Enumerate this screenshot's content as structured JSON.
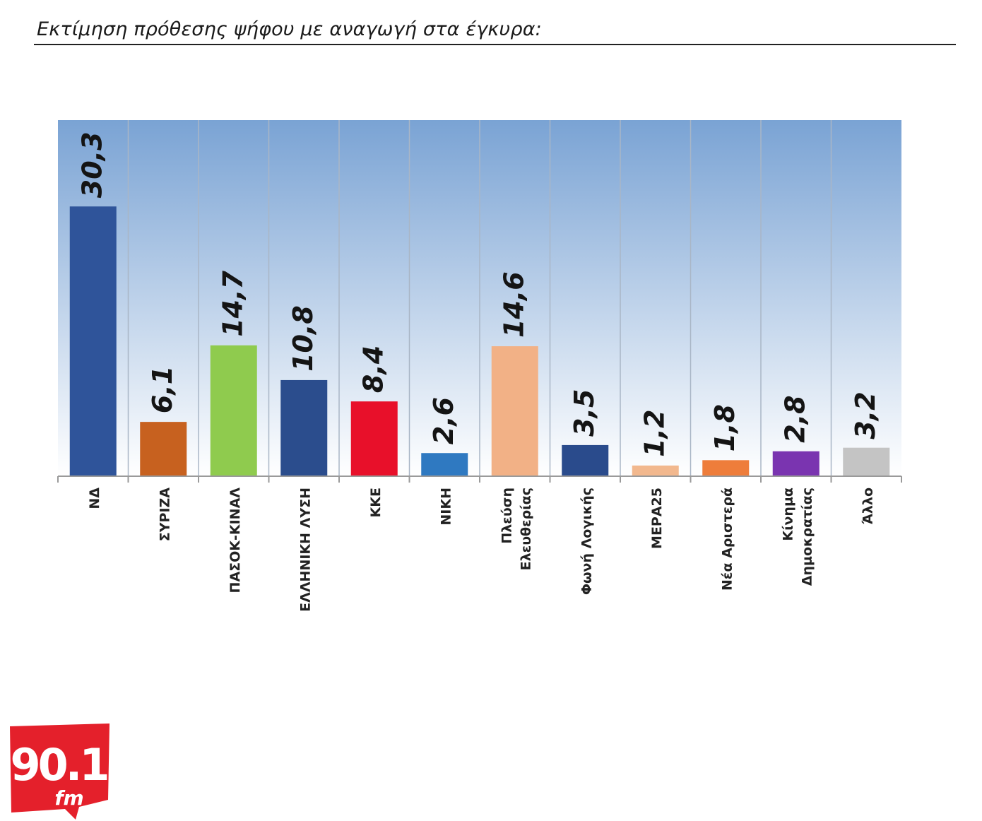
{
  "header": {
    "title": "Εκτίμηση πρόθεσης ψήφου με αναγωγή στα έγκυρα:"
  },
  "chart_data": {
    "type": "bar",
    "categories": [
      [
        "ΝΔ"
      ],
      [
        "ΣΥΡΙΖΑ"
      ],
      [
        "ΠΑΣΟΚ-ΚΙΝΑΛ"
      ],
      [
        "ΕΛΛΗΝΙΚΗ ΛΥΣΗ"
      ],
      [
        "ΚΚΕ"
      ],
      [
        "ΝΙΚΗ"
      ],
      [
        "Πλεύση",
        "Ελευθερίας"
      ],
      [
        "Φωνή Λογικής"
      ],
      [
        "ΜΕΡΑ25"
      ],
      [
        "Νέα Αριστερά"
      ],
      [
        "Κίνημα",
        "Δημοκρατίας"
      ],
      [
        "Άλλο"
      ]
    ],
    "values": [
      30.3,
      6.1,
      14.7,
      10.8,
      8.4,
      2.6,
      14.6,
      3.5,
      1.2,
      1.8,
      2.8,
      3.2
    ],
    "value_labels": [
      "30,3",
      "6,1",
      "14,7",
      "10,8",
      "8,4",
      "2,6",
      "14,6",
      "3,5",
      "1,2",
      "1,8",
      "2,8",
      "3,2"
    ],
    "colors": [
      "#2f549a",
      "#c7611f",
      "#8fcb4e",
      "#2b4d8d",
      "#e8102a",
      "#2f79c1",
      "#f2b186",
      "#2a4b8c",
      "#f2b88e",
      "#ee7d3b",
      "#7a34b0",
      "#c4c4c4"
    ],
    "ylim": [
      0,
      40
    ],
    "background_gradient": [
      "#7aa3d4",
      "#ffffff"
    ],
    "grid": false,
    "legend": "none"
  },
  "logo": {
    "text_main": "90.1",
    "text_sub": "fm",
    "color": "#e4202b"
  }
}
